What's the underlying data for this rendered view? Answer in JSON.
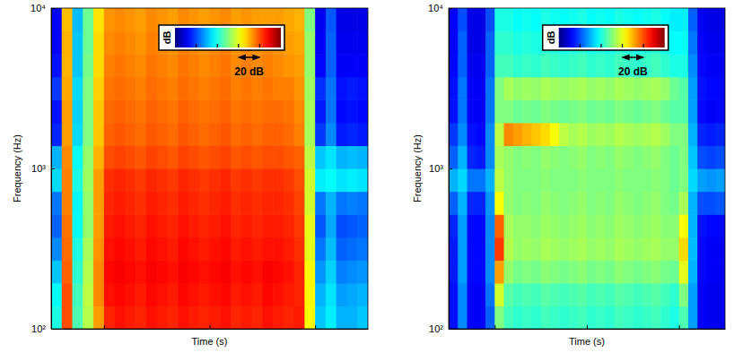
{
  "chart_data": [
    {
      "type": "heatmap",
      "color": "jet",
      "log": "y",
      "tick_labels": "y",
      "x_label": "Time (s)",
      "y_label": "Frequency (Hz)",
      "xlim": [
        0,
        6
      ],
      "xticks": [
        1,
        3,
        5
      ],
      "ylim": [
        100,
        10000
      ],
      "yticks": [
        {
          "value": 100,
          "label": "10²"
        },
        {
          "value": 1000,
          "label": "10³"
        },
        {
          "value": 10000,
          "label": "10⁴"
        }
      ],
      "x_bins": [
        0,
        0.2,
        0.4,
        0.6,
        0.8,
        1,
        1.2,
        1.4,
        1.6,
        1.8,
        2,
        2.2,
        2.4,
        2.6,
        2.8,
        3,
        3.2,
        3.4,
        3.6,
        3.8,
        4,
        4.2,
        4.4,
        4.6,
        4.8,
        5,
        5.2,
        5.4,
        5.6,
        5.8,
        6
      ],
      "y_bins": [
        100,
        139,
        193,
        268,
        373,
        518,
        720,
        1000,
        1389,
        1931,
        2683,
        3728,
        5179,
        7197,
        10000
      ],
      "values": [
        [
          40,
          80,
          45,
          55,
          72,
          84,
          86,
          85,
          84,
          86,
          85,
          84,
          86,
          85,
          84,
          85,
          86,
          84,
          85,
          84,
          86,
          85,
          84,
          85,
          62,
          32,
          36,
          30,
          30,
          32
        ],
        [
          38,
          80,
          44,
          56,
          74,
          86,
          87,
          86,
          85,
          87,
          86,
          85,
          87,
          86,
          85,
          86,
          87,
          85,
          86,
          85,
          87,
          86,
          85,
          84,
          63,
          30,
          35,
          28,
          29,
          30
        ],
        [
          32,
          78,
          42,
          55,
          74,
          87,
          88,
          87,
          86,
          88,
          87,
          86,
          88,
          87,
          86,
          87,
          88,
          86,
          87,
          86,
          88,
          87,
          86,
          84,
          62,
          27,
          33,
          25,
          26,
          27
        ],
        [
          26,
          77,
          40,
          54,
          73,
          86,
          87,
          86,
          85,
          87,
          86,
          85,
          87,
          86,
          85,
          86,
          87,
          85,
          86,
          85,
          86,
          86,
          85,
          83,
          60,
          24,
          31,
          22,
          23,
          24
        ],
        [
          22,
          76,
          38,
          52,
          72,
          85,
          86,
          85,
          84,
          86,
          85,
          84,
          86,
          85,
          84,
          85,
          86,
          84,
          85,
          84,
          85,
          85,
          84,
          82,
          60,
          21,
          29,
          20,
          21,
          22
        ],
        [
          24,
          75,
          37,
          52,
          72,
          84,
          85,
          84,
          83,
          85,
          84,
          83,
          85,
          84,
          83,
          84,
          85,
          83,
          84,
          83,
          84,
          84,
          83,
          81,
          58,
          24,
          30,
          24,
          25,
          24
        ],
        [
          34,
          75,
          40,
          53,
          72,
          83,
          84,
          83,
          82,
          84,
          83,
          82,
          84,
          83,
          82,
          83,
          84,
          82,
          83,
          82,
          83,
          83,
          82,
          80,
          58,
          36,
          38,
          35,
          36,
          35
        ],
        [
          30,
          74,
          38,
          52,
          70,
          80,
          81,
          80,
          79,
          81,
          80,
          79,
          81,
          80,
          79,
          80,
          81,
          79,
          80,
          79,
          80,
          80,
          79,
          78,
          56,
          32,
          35,
          30,
          31,
          30
        ],
        [
          16,
          72,
          34,
          50,
          68,
          78,
          79,
          78,
          77,
          79,
          78,
          77,
          79,
          78,
          77,
          78,
          79,
          77,
          78,
          77,
          78,
          78,
          77,
          75,
          54,
          18,
          26,
          15,
          16,
          15
        ],
        [
          14,
          72,
          33,
          50,
          68,
          77,
          78,
          77,
          76,
          78,
          77,
          76,
          78,
          77,
          76,
          77,
          78,
          76,
          77,
          76,
          77,
          77,
          76,
          74,
          54,
          15,
          24,
          13,
          14,
          13
        ],
        [
          18,
          71,
          34,
          50,
          67,
          76,
          77,
          76,
          75,
          77,
          76,
          75,
          77,
          76,
          75,
          76,
          77,
          75,
          76,
          75,
          76,
          75,
          75,
          73,
          53,
          17,
          24,
          14,
          15,
          14
        ],
        [
          14,
          70,
          32,
          49,
          66,
          75,
          76,
          75,
          74,
          76,
          75,
          74,
          76,
          75,
          74,
          75,
          76,
          74,
          75,
          74,
          75,
          74,
          73,
          72,
          52,
          13,
          22,
          12,
          12,
          12
        ],
        [
          12,
          70,
          32,
          48,
          66,
          74,
          75,
          74,
          73,
          75,
          74,
          73,
          75,
          74,
          73,
          74,
          75,
          73,
          74,
          73,
          74,
          73,
          72,
          71,
          52,
          12,
          22,
          11,
          11,
          11
        ],
        [
          12,
          69,
          31,
          48,
          65,
          73,
          74,
          73,
          72,
          74,
          73,
          72,
          74,
          73,
          72,
          73,
          74,
          72,
          73,
          72,
          72,
          72,
          71,
          70,
          50,
          11,
          21,
          10,
          10,
          10
        ]
      ],
      "colorbar": {
        "label": "dB",
        "range": [
          0,
          100
        ],
        "ticks": [
          20,
          40,
          60,
          80
        ],
        "scale_bar": {
          "value": 20,
          "label": "20 dB"
        }
      }
    },
    {
      "type": "heatmap",
      "color": "jet",
      "log": "y",
      "tick_labels": "y",
      "x_label": "Time (s)",
      "y_label": "Frequency (Hz)",
      "xlim": [
        0,
        6
      ],
      "xticks": [
        1,
        3,
        5
      ],
      "ylim": [
        100,
        10000
      ],
      "yticks": [
        {
          "value": 100,
          "label": "10²"
        },
        {
          "value": 1000,
          "label": "10³"
        },
        {
          "value": 10000,
          "label": "10⁴"
        }
      ],
      "x_bins": [
        0,
        0.2,
        0.4,
        0.6,
        0.8,
        1,
        1.2,
        1.4,
        1.6,
        1.8,
        2,
        2.2,
        2.4,
        2.6,
        2.8,
        3,
        3.2,
        3.4,
        3.6,
        3.8,
        4,
        4.2,
        4.4,
        4.6,
        4.8,
        5,
        5.2,
        5.4,
        5.6,
        5.8,
        6
      ],
      "y_bins": [
        100,
        139,
        193,
        268,
        373,
        518,
        720,
        1000,
        1389,
        1931,
        2683,
        3728,
        5179,
        7197,
        10000
      ],
      "values": [
        [
          14,
          26,
          12,
          12,
          22,
          50,
          44,
          42,
          43,
          42,
          44,
          43,
          42,
          43,
          44,
          42,
          43,
          42,
          44,
          43,
          42,
          43,
          44,
          42,
          40,
          45,
          28,
          12,
          11,
          11
        ],
        [
          14,
          26,
          12,
          12,
          24,
          58,
          46,
          44,
          45,
          44,
          46,
          45,
          44,
          45,
          46,
          44,
          45,
          44,
          46,
          45,
          44,
          45,
          46,
          44,
          42,
          50,
          28,
          12,
          11,
          11
        ],
        [
          15,
          28,
          13,
          13,
          26,
          72,
          52,
          49,
          50,
          49,
          51,
          50,
          49,
          50,
          51,
          49,
          50,
          49,
          51,
          50,
          49,
          50,
          51,
          49,
          48,
          60,
          30,
          13,
          12,
          12
        ],
        [
          15,
          28,
          13,
          13,
          26,
          82,
          55,
          52,
          53,
          52,
          54,
          53,
          52,
          53,
          54,
          52,
          53,
          52,
          54,
          53,
          52,
          53,
          54,
          52,
          52,
          66,
          31,
          13,
          12,
          12
        ],
        [
          16,
          28,
          13,
          13,
          26,
          78,
          54,
          52,
          52,
          51,
          53,
          52,
          51,
          52,
          53,
          51,
          52,
          51,
          53,
          52,
          51,
          52,
          53,
          51,
          51,
          62,
          30,
          14,
          13,
          13
        ],
        [
          22,
          30,
          16,
          16,
          27,
          62,
          52,
          50,
          51,
          50,
          52,
          51,
          50,
          51,
          52,
          50,
          51,
          50,
          52,
          51,
          50,
          51,
          52,
          50,
          49,
          54,
          30,
          20,
          20,
          21
        ],
        [
          30,
          34,
          24,
          24,
          30,
          56,
          52,
          50,
          50,
          50,
          51,
          50,
          50,
          50,
          51,
          50,
          50,
          50,
          51,
          50,
          50,
          50,
          51,
          50,
          48,
          50,
          34,
          28,
          27,
          28
        ],
        [
          22,
          30,
          16,
          15,
          26,
          54,
          52,
          50,
          51,
          50,
          52,
          51,
          50,
          51,
          52,
          50,
          51,
          50,
          52,
          51,
          50,
          51,
          52,
          50,
          48,
          50,
          32,
          20,
          19,
          20
        ],
        [
          18,
          26,
          14,
          13,
          26,
          56,
          74,
          72,
          70,
          68,
          66,
          62,
          56,
          54,
          55,
          53,
          54,
          53,
          55,
          54,
          53,
          54,
          55,
          53,
          50,
          50,
          30,
          16,
          15,
          16
        ],
        [
          14,
          24,
          12,
          12,
          24,
          50,
          50,
          48,
          49,
          48,
          50,
          49,
          48,
          49,
          50,
          48,
          49,
          48,
          50,
          49,
          48,
          49,
          50,
          48,
          46,
          46,
          28,
          13,
          12,
          13
        ],
        [
          14,
          24,
          12,
          12,
          24,
          50,
          54,
          52,
          53,
          52,
          54,
          53,
          52,
          53,
          54,
          52,
          53,
          52,
          54,
          53,
          52,
          53,
          54,
          52,
          48,
          46,
          28,
          14,
          13,
          13
        ],
        [
          13,
          22,
          11,
          11,
          22,
          44,
          44,
          42,
          43,
          42,
          44,
          43,
          42,
          43,
          44,
          42,
          43,
          42,
          44,
          43,
          42,
          43,
          44,
          42,
          40,
          40,
          26,
          13,
          12,
          12
        ],
        [
          12,
          22,
          10,
          10,
          22,
          42,
          42,
          40,
          41,
          40,
          42,
          41,
          40,
          41,
          42,
          40,
          41,
          40,
          42,
          41,
          40,
          41,
          42,
          40,
          38,
          38,
          24,
          12,
          11,
          11
        ],
        [
          12,
          20,
          10,
          10,
          20,
          40,
          40,
          38,
          39,
          38,
          40,
          39,
          38,
          39,
          40,
          38,
          39,
          38,
          40,
          39,
          38,
          39,
          40,
          38,
          36,
          36,
          22,
          11,
          10,
          10
        ]
      ],
      "colorbar": {
        "label": "dB",
        "range": [
          0,
          100
        ],
        "ticks": [
          20,
          40,
          60,
          80
        ],
        "scale_bar": {
          "value": 20,
          "label": "20 dB"
        }
      }
    }
  ]
}
